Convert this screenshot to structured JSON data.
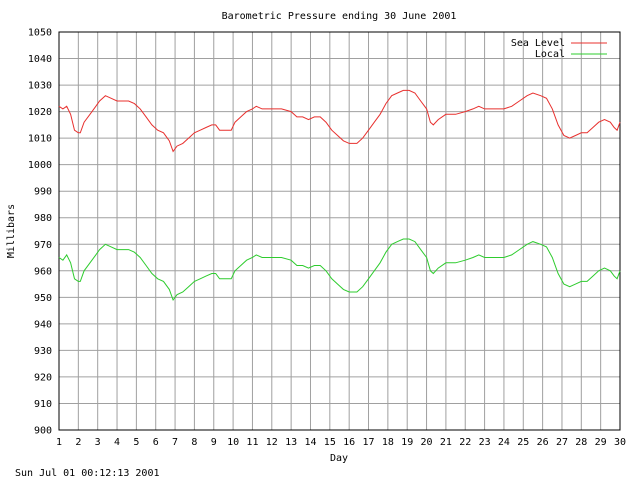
{
  "footer": {
    "timestamp": "Sun Jul 01 00:12:13 2001"
  },
  "chart_data": {
    "type": "line",
    "title": "Barometric Pressure ending 30 June 2001",
    "xlabel": "Day",
    "ylabel": "Millibars",
    "xlim": [
      1,
      30
    ],
    "ylim": [
      900,
      1050
    ],
    "grid": true,
    "legend_position": "top-right",
    "x_ticks": [
      "1",
      "2",
      "3",
      "4",
      "5",
      "6",
      "7",
      "8",
      "9",
      "10",
      "11",
      "12",
      "13",
      "14",
      "15",
      "16",
      "17",
      "18",
      "19",
      "20",
      "21",
      "22",
      "23",
      "24",
      "25",
      "26",
      "27",
      "28",
      "29",
      "30"
    ],
    "y_ticks": [
      "900",
      "910",
      "920",
      "930",
      "940",
      "950",
      "960",
      "970",
      "980",
      "990",
      "1000",
      "1010",
      "1020",
      "1030",
      "1040",
      "1050"
    ],
    "series": [
      {
        "name": "Sea Level",
        "color": "#e8302e",
        "points": [
          [
            1.0,
            1022
          ],
          [
            1.2,
            1021
          ],
          [
            1.4,
            1022
          ],
          [
            1.6,
            1019
          ],
          [
            1.8,
            1013
          ],
          [
            2.0,
            1012
          ],
          [
            2.1,
            1012
          ],
          [
            2.3,
            1016
          ],
          [
            2.6,
            1019
          ],
          [
            2.9,
            1022
          ],
          [
            3.1,
            1024
          ],
          [
            3.4,
            1026
          ],
          [
            3.7,
            1025
          ],
          [
            4.0,
            1024
          ],
          [
            4.3,
            1024
          ],
          [
            4.6,
            1024
          ],
          [
            4.9,
            1023
          ],
          [
            5.2,
            1021
          ],
          [
            5.5,
            1018
          ],
          [
            5.8,
            1015
          ],
          [
            6.1,
            1013
          ],
          [
            6.4,
            1012
          ],
          [
            6.7,
            1009
          ],
          [
            6.9,
            1005
          ],
          [
            7.1,
            1007
          ],
          [
            7.4,
            1008
          ],
          [
            7.7,
            1010
          ],
          [
            8.0,
            1012
          ],
          [
            8.3,
            1013
          ],
          [
            8.6,
            1014
          ],
          [
            8.9,
            1015
          ],
          [
            9.1,
            1015
          ],
          [
            9.3,
            1013
          ],
          [
            9.6,
            1013
          ],
          [
            9.9,
            1013
          ],
          [
            10.1,
            1016
          ],
          [
            10.4,
            1018
          ],
          [
            10.7,
            1020
          ],
          [
            11.0,
            1021
          ],
          [
            11.2,
            1022
          ],
          [
            11.5,
            1021
          ],
          [
            12.0,
            1021
          ],
          [
            12.5,
            1021
          ],
          [
            13.0,
            1020
          ],
          [
            13.3,
            1018
          ],
          [
            13.6,
            1018
          ],
          [
            13.9,
            1017
          ],
          [
            14.2,
            1018
          ],
          [
            14.5,
            1018
          ],
          [
            14.8,
            1016
          ],
          [
            15.1,
            1013
          ],
          [
            15.4,
            1011
          ],
          [
            15.7,
            1009
          ],
          [
            16.0,
            1008
          ],
          [
            16.4,
            1008
          ],
          [
            16.7,
            1010
          ],
          [
            17.0,
            1013
          ],
          [
            17.3,
            1016
          ],
          [
            17.6,
            1019
          ],
          [
            17.9,
            1023
          ],
          [
            18.2,
            1026
          ],
          [
            18.5,
            1027
          ],
          [
            18.8,
            1028
          ],
          [
            19.1,
            1028
          ],
          [
            19.4,
            1027
          ],
          [
            19.7,
            1024
          ],
          [
            20.0,
            1021
          ],
          [
            20.2,
            1016
          ],
          [
            20.35,
            1015
          ],
          [
            20.6,
            1017
          ],
          [
            21.0,
            1019
          ],
          [
            21.5,
            1019
          ],
          [
            22.0,
            1020
          ],
          [
            22.4,
            1021
          ],
          [
            22.7,
            1022
          ],
          [
            23.0,
            1021
          ],
          [
            23.5,
            1021
          ],
          [
            24.0,
            1021
          ],
          [
            24.4,
            1022
          ],
          [
            24.8,
            1024
          ],
          [
            25.2,
            1026
          ],
          [
            25.5,
            1027
          ],
          [
            25.9,
            1026
          ],
          [
            26.2,
            1025
          ],
          [
            26.5,
            1021
          ],
          [
            26.8,
            1015
          ],
          [
            27.1,
            1011
          ],
          [
            27.4,
            1010
          ],
          [
            27.7,
            1011
          ],
          [
            28.0,
            1012
          ],
          [
            28.3,
            1012
          ],
          [
            28.6,
            1014
          ],
          [
            28.9,
            1016
          ],
          [
            29.2,
            1017
          ],
          [
            29.5,
            1016
          ],
          [
            29.7,
            1014
          ],
          [
            29.85,
            1013
          ],
          [
            30.0,
            1016
          ]
        ]
      },
      {
        "name": "Local",
        "color": "#2ecc2e",
        "points": [
          [
            1.0,
            965
          ],
          [
            1.2,
            964
          ],
          [
            1.4,
            966
          ],
          [
            1.6,
            963
          ],
          [
            1.8,
            957
          ],
          [
            2.0,
            956
          ],
          [
            2.1,
            956
          ],
          [
            2.3,
            960
          ],
          [
            2.6,
            963
          ],
          [
            2.9,
            966
          ],
          [
            3.1,
            968
          ],
          [
            3.4,
            970
          ],
          [
            3.7,
            969
          ],
          [
            4.0,
            968
          ],
          [
            4.3,
            968
          ],
          [
            4.6,
            968
          ],
          [
            4.9,
            967
          ],
          [
            5.2,
            965
          ],
          [
            5.5,
            962
          ],
          [
            5.8,
            959
          ],
          [
            6.1,
            957
          ],
          [
            6.4,
            956
          ],
          [
            6.7,
            953
          ],
          [
            6.9,
            949
          ],
          [
            7.1,
            951
          ],
          [
            7.4,
            952
          ],
          [
            7.7,
            954
          ],
          [
            8.0,
            956
          ],
          [
            8.3,
            957
          ],
          [
            8.6,
            958
          ],
          [
            8.9,
            959
          ],
          [
            9.1,
            959
          ],
          [
            9.3,
            957
          ],
          [
            9.6,
            957
          ],
          [
            9.9,
            957
          ],
          [
            10.1,
            960
          ],
          [
            10.4,
            962
          ],
          [
            10.7,
            964
          ],
          [
            11.0,
            965
          ],
          [
            11.2,
            966
          ],
          [
            11.5,
            965
          ],
          [
            12.0,
            965
          ],
          [
            12.5,
            965
          ],
          [
            13.0,
            964
          ],
          [
            13.3,
            962
          ],
          [
            13.6,
            962
          ],
          [
            13.9,
            961
          ],
          [
            14.2,
            962
          ],
          [
            14.5,
            962
          ],
          [
            14.8,
            960
          ],
          [
            15.1,
            957
          ],
          [
            15.4,
            955
          ],
          [
            15.7,
            953
          ],
          [
            16.0,
            952
          ],
          [
            16.4,
            952
          ],
          [
            16.7,
            954
          ],
          [
            17.0,
            957
          ],
          [
            17.3,
            960
          ],
          [
            17.6,
            963
          ],
          [
            17.9,
            967
          ],
          [
            18.2,
            970
          ],
          [
            18.5,
            971
          ],
          [
            18.8,
            972
          ],
          [
            19.1,
            972
          ],
          [
            19.4,
            971
          ],
          [
            19.7,
            968
          ],
          [
            20.0,
            965
          ],
          [
            20.2,
            960
          ],
          [
            20.35,
            959
          ],
          [
            20.6,
            961
          ],
          [
            21.0,
            963
          ],
          [
            21.5,
            963
          ],
          [
            22.0,
            964
          ],
          [
            22.4,
            965
          ],
          [
            22.7,
            966
          ],
          [
            23.0,
            965
          ],
          [
            23.5,
            965
          ],
          [
            24.0,
            965
          ],
          [
            24.4,
            966
          ],
          [
            24.8,
            968
          ],
          [
            25.2,
            970
          ],
          [
            25.5,
            971
          ],
          [
            25.9,
            970
          ],
          [
            26.2,
            969
          ],
          [
            26.5,
            965
          ],
          [
            26.8,
            959
          ],
          [
            27.1,
            955
          ],
          [
            27.4,
            954
          ],
          [
            27.7,
            955
          ],
          [
            28.0,
            956
          ],
          [
            28.3,
            956
          ],
          [
            28.6,
            958
          ],
          [
            28.9,
            960
          ],
          [
            29.2,
            961
          ],
          [
            29.5,
            960
          ],
          [
            29.7,
            958
          ],
          [
            29.85,
            957
          ],
          [
            30.0,
            960
          ]
        ]
      }
    ]
  }
}
